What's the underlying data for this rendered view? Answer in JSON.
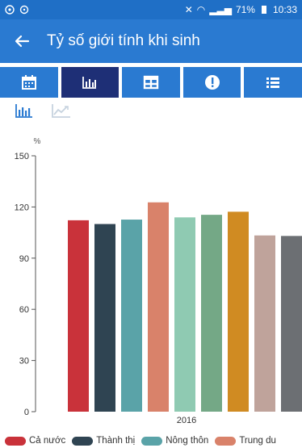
{
  "status_bar": {
    "battery": "71%",
    "time": "10:33"
  },
  "app_bar": {
    "title": "Tỷ số giới tính khi sinh",
    "back_icon": "arrow-left-icon"
  },
  "tabs": [
    {
      "icon": "calendar-icon",
      "active": false
    },
    {
      "icon": "bar-chart-icon",
      "active": true
    },
    {
      "icon": "table-icon",
      "active": false
    },
    {
      "icon": "alert-icon",
      "active": false
    },
    {
      "icon": "list-icon",
      "active": false
    }
  ],
  "chart_toggle": [
    {
      "icon": "bar-chart-icon",
      "active": true
    },
    {
      "icon": "line-chart-icon",
      "active": false
    }
  ],
  "colors": {
    "primary": "#2a7ad1",
    "status": "#1f6fc6",
    "active_tab": "#1e2f76"
  },
  "chart_data": {
    "type": "bar",
    "ylabel": "%",
    "ylim": [
      0,
      150
    ],
    "yticks": [
      0,
      30,
      60,
      90,
      120,
      150
    ],
    "categories": [
      "2016"
    ],
    "grid": false,
    "legend_position": "bottom",
    "series": [
      {
        "name": "Cả nước",
        "values": [
          112.2
        ],
        "color": "#c9323a"
      },
      {
        "name": "Thành thị",
        "values": [
          110.0
        ],
        "color": "#2f4452"
      },
      {
        "name": "Nông thôn",
        "values": [
          112.6
        ],
        "color": "#5aa3a8"
      },
      {
        "name": "Trung du",
        "values": [
          122.7
        ],
        "color": "#d9826a"
      },
      {
        "name": "",
        "values": [
          113.9
        ],
        "color": "#8fcab2"
      },
      {
        "name": "",
        "values": [
          115.4
        ],
        "color": "#74a886"
      },
      {
        "name": "",
        "values": [
          117.2
        ],
        "color": "#d08b22"
      },
      {
        "name": "",
        "values": [
          103.3
        ],
        "color": "#bfa39b"
      },
      {
        "name": "",
        "values": [
          103.0
        ],
        "color": "#6c6f73"
      }
    ]
  }
}
